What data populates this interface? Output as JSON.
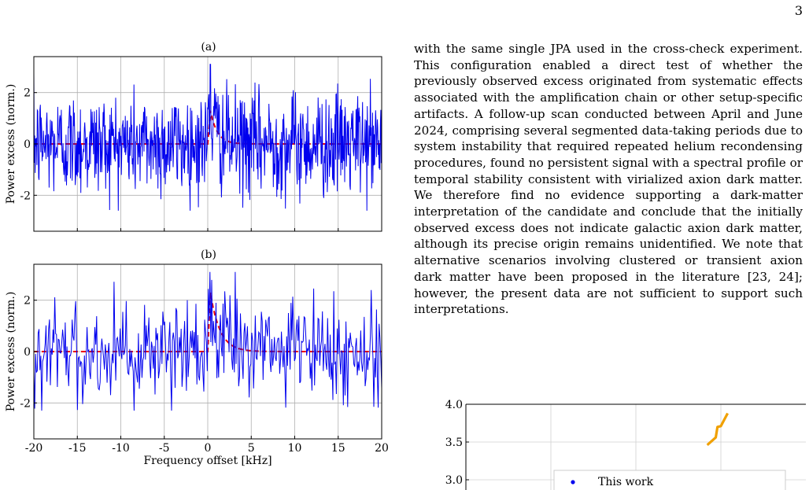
{
  "page": {
    "number": "3"
  },
  "body_text": "with the same single JPA used in the cross-check experiment. This configuration enabled a direct test of whether the previously observed excess originated from systematic effects associated with the amplification chain or other setup-specific artifacts. A follow-up scan conducted between April and June 2024, comprising several segmented data-taking periods due to system instability that required repeated helium recondensing procedures, found no persistent signal with a spectral profile or temporal stability consistent with virialized axion dark matter. We therefore find no evidence supporting a dark-matter interpretation of the candidate and conclude that the initially observed excess does not indicate galactic axion dark matter, although its precise origin remains unidentified. We note that alternative scenarios involving clustered or transient axion dark matter have been proposed in the literature [23, 24]; however, the present data are not sufficient to support such interpretations.",
  "figure": {
    "xlabel": "Frequency offset [kHz]",
    "ylabel": "Power excess (norm.)"
  },
  "chart_data": [
    {
      "type": "line",
      "panel_label": "(a)",
      "xlabel": "",
      "ylabel": "Power excess (norm.)",
      "xlim": [
        -20,
        20
      ],
      "ylim": [
        -3.4,
        3.4
      ],
      "yticks": [
        -2,
        0,
        2
      ],
      "xticks": [
        -20,
        -15,
        -10,
        -5,
        0,
        5,
        10,
        15,
        20
      ],
      "grid": true,
      "colors": {
        "data": "#0000ee",
        "fit": "#ee0000"
      },
      "series": [
        {
          "style": "solid",
          "n_points": 800,
          "x_range": [
            -20,
            20
          ],
          "approx_std": 1.0,
          "max": 3.1,
          "min": -2.6
        },
        {
          "style": "dashed",
          "baseline": 0,
          "peak_x": 0.3,
          "peak_y": 1.3,
          "shape": "sharp rise, exponential tail to about 2 kHz"
        }
      ]
    },
    {
      "type": "line",
      "panel_label": "(b)",
      "xlabel": "Frequency offset [kHz]",
      "ylabel": "Power excess (norm.)",
      "xlim": [
        -20,
        20
      ],
      "ylim": [
        -3.4,
        3.4
      ],
      "yticks": [
        -2,
        0,
        2
      ],
      "xticks": [
        -20,
        -15,
        -10,
        -5,
        0,
        5,
        10,
        15,
        20
      ],
      "xtick_labels": [
        "-20",
        "-15",
        "-10",
        "-5",
        "0",
        "5",
        "10",
        "15",
        "20"
      ],
      "grid": true,
      "colors": {
        "data": "#0000ee",
        "fit": "#ee0000"
      },
      "series": [
        {
          "style": "solid",
          "n_points": 400,
          "x_range": [
            -20,
            20
          ],
          "approx_std": 1.0,
          "max": 3.1,
          "min": -2.3
        },
        {
          "style": "dashed",
          "baseline": 0,
          "peak_x": 0.3,
          "peak_y": 2.3,
          "shape": "sharp rise, tail to about 2.5 kHz"
        }
      ]
    },
    {
      "type": "line",
      "xlim": null,
      "ylim": [
        3.0,
        4.0
      ],
      "yticks": [
        "3.0",
        "3.5",
        "4.0"
      ],
      "grid": true,
      "series": [
        {
          "style": "solid",
          "color": "#f0a000",
          "points": [
            [
              0.71,
              3.46
            ],
            [
              0.735,
              3.56
            ],
            [
              0.74,
              3.7
            ],
            [
              0.75,
              3.71
            ],
            [
              0.77,
              3.88
            ]
          ]
        }
      ],
      "legend": {
        "position": "lower-right",
        "entries": [
          {
            "label": "This work",
            "marker": "dot",
            "color": "#0000ee"
          }
        ]
      }
    }
  ]
}
